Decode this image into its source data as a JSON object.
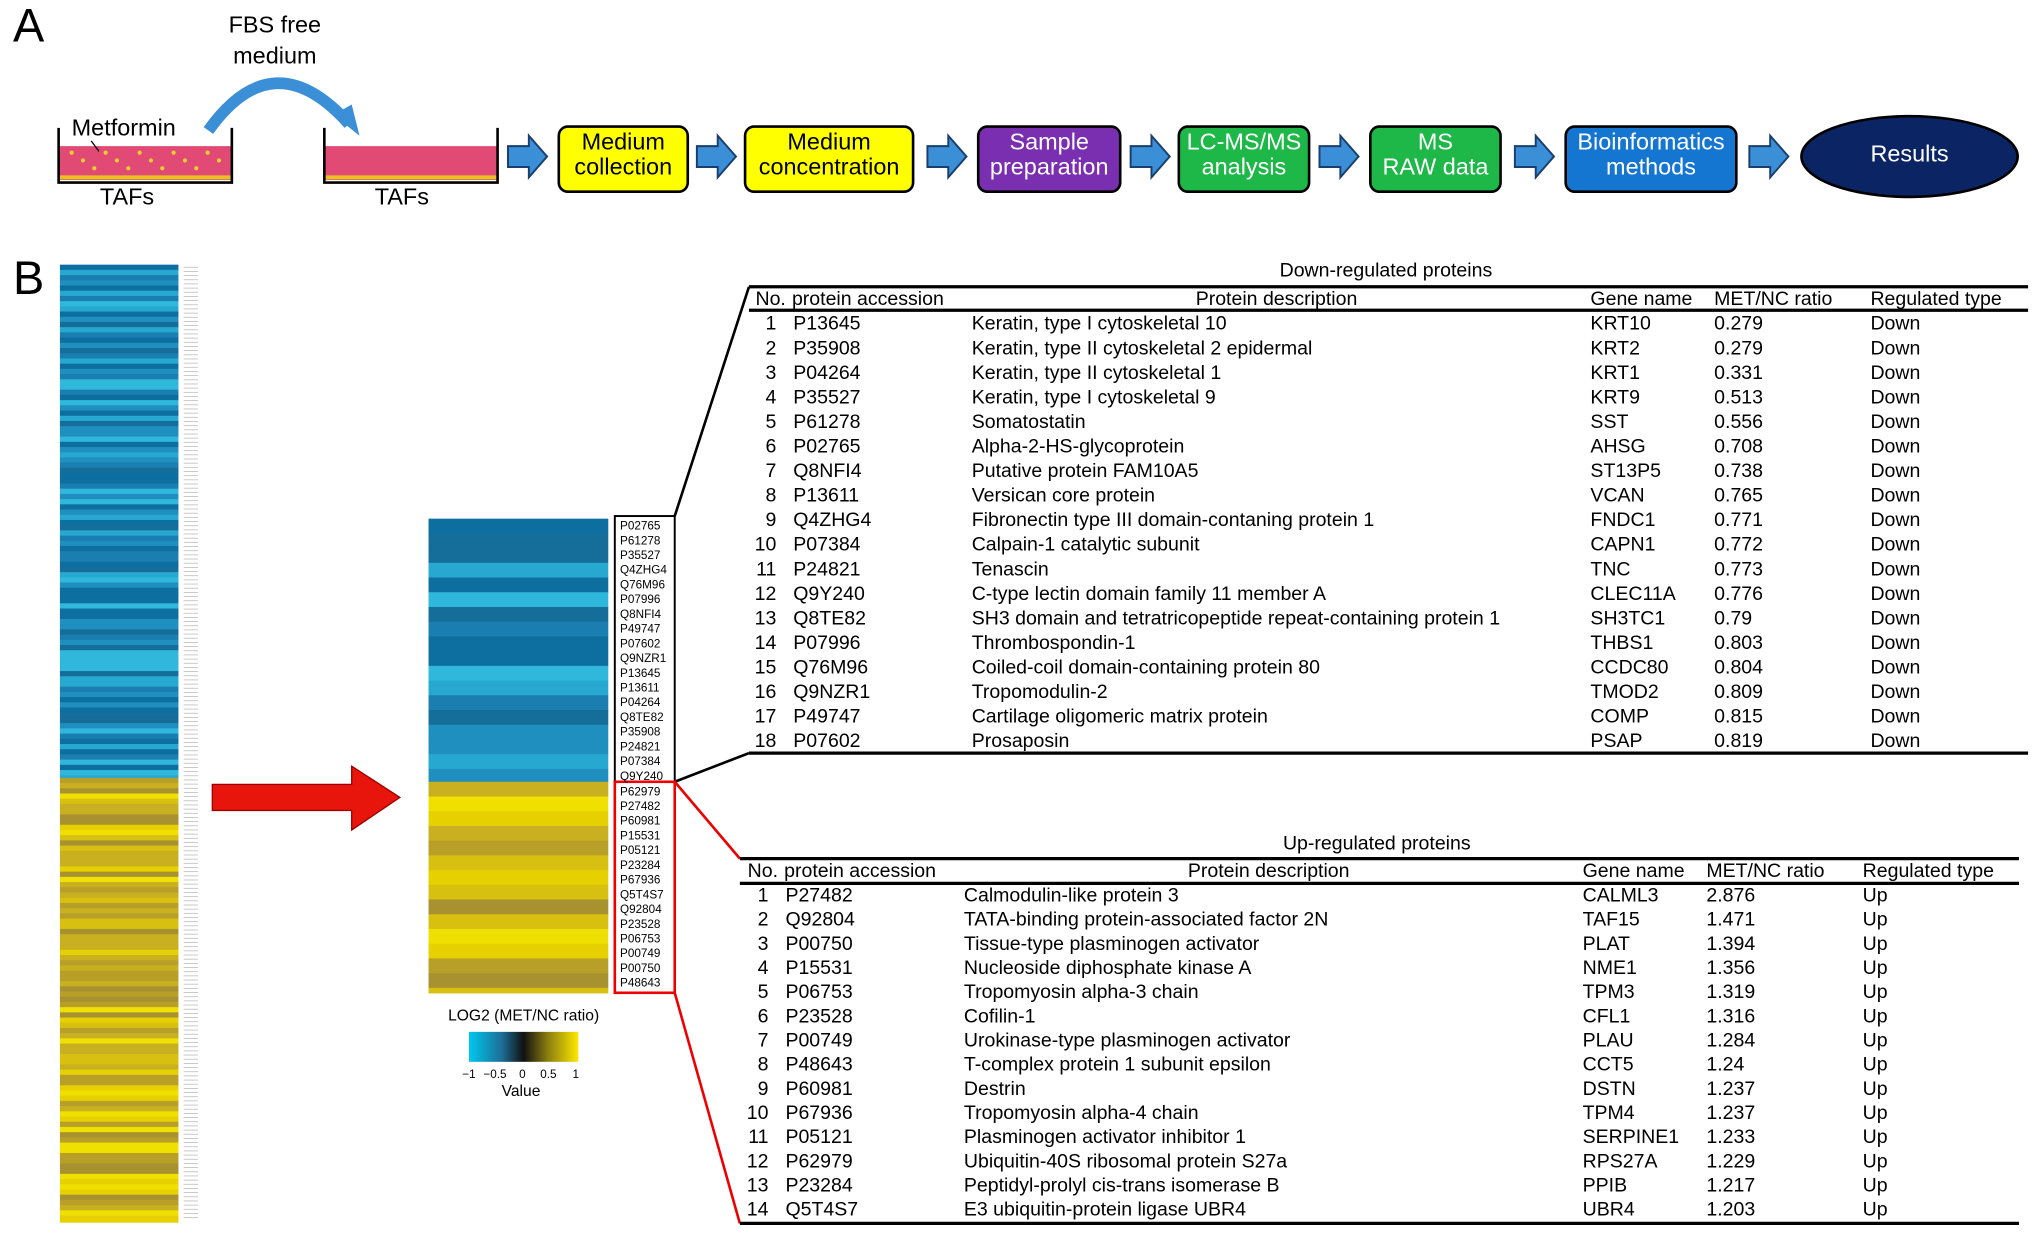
{
  "panel_a": {
    "label": "A",
    "fbs_label": [
      "FBS free",
      "medium"
    ],
    "metformin": "Metformin",
    "tafs": [
      "TAFs",
      "TAFs"
    ],
    "steps": [
      {
        "lines": [
          "Medium",
          "collection"
        ],
        "color": "#ffff00"
      },
      {
        "lines": [
          "Medium",
          "concentration"
        ],
        "color": "#ffff00"
      },
      {
        "lines": [
          "Sample",
          "preparation"
        ],
        "color": "#7a2fb0"
      },
      {
        "lines": [
          "LC-MS/MS",
          "analysis"
        ],
        "color": "#1db848"
      },
      {
        "lines": [
          "MS",
          "RAW data"
        ],
        "color": "#1db848"
      },
      {
        "lines": [
          "Bioinformatics",
          "methods"
        ],
        "color": "#1576d2"
      },
      {
        "lines": [
          "Results"
        ],
        "color": "#0b2463"
      }
    ]
  },
  "panel_b": {
    "label": "B",
    "down_ids": [
      "P02765",
      "P61278",
      "P35527",
      "Q4ZHG4",
      "Q76M96",
      "P07996",
      "Q8NFI4",
      "P49747",
      "P07602",
      "Q9NZR1",
      "P13645",
      "P13611",
      "P04264",
      "Q8TE82",
      "P35908",
      "P24821",
      "P07384",
      "Q9Y240"
    ],
    "up_ids": [
      "P62979",
      "P27482",
      "P60981",
      "P15531",
      "P05121",
      "P23284",
      "P67936",
      "Q5T4S7",
      "Q92804",
      "P23528",
      "P06753",
      "P00749",
      "P00750",
      "P48643"
    ],
    "colorbar": {
      "title": "LOG2 (MET/NC ratio)",
      "ticks": [
        "−1",
        "−0.5",
        "0",
        "0.5",
        "1"
      ],
      "label": "Value"
    },
    "tables": [
      {
        "title": "Down-regulated proteins",
        "columns": [
          "No.",
          "protein accession",
          "Protein description",
          "Gene name",
          "MET/NC ratio",
          "Regulated type"
        ],
        "rows": [
          [
            1,
            "P13645",
            "Keratin, type I cytoskeletal 10",
            "KRT10",
            0.279,
            "Down"
          ],
          [
            2,
            "P35908",
            "Keratin, type II cytoskeletal 2 epidermal",
            "KRT2",
            0.279,
            "Down"
          ],
          [
            3,
            "P04264",
            "Keratin, type II cytoskeletal 1",
            "KRT1",
            0.331,
            "Down"
          ],
          [
            4,
            "P35527",
            "Keratin, type I cytoskeletal 9",
            "KRT9",
            0.513,
            "Down"
          ],
          [
            5,
            "P61278",
            "Somatostatin",
            "SST",
            0.556,
            "Down"
          ],
          [
            6,
            "P02765",
            "Alpha-2-HS-glycoprotein",
            "AHSG",
            0.708,
            "Down"
          ],
          [
            7,
            "Q8NFI4",
            "Putative protein FAM10A5",
            "ST13P5",
            0.738,
            "Down"
          ],
          [
            8,
            "P13611",
            "Versican core protein",
            "VCAN",
            0.765,
            "Down"
          ],
          [
            9,
            "Q4ZHG4",
            "Fibronectin type III domain-contaning protein 1",
            "FNDC1",
            0.771,
            "Down"
          ],
          [
            10,
            "P07384",
            "Calpain-1 catalytic subunit",
            "CAPN1",
            0.772,
            "Down"
          ],
          [
            11,
            "P24821",
            "Tenascin",
            "TNC",
            0.773,
            "Down"
          ],
          [
            12,
            "Q9Y240",
            "C-type lectin domain family 11 member A",
            "CLEC11A",
            0.776,
            "Down"
          ],
          [
            13,
            "Q8TE82",
            "SH3 domain and tetratricopeptide repeat-containing protein 1",
            "SH3TC1",
            0.79,
            "Down"
          ],
          [
            14,
            "P07996",
            "Thrombospondin-1",
            "THBS1",
            0.803,
            "Down"
          ],
          [
            15,
            "Q76M96",
            "Coiled-coil domain-containing protein 80",
            "CCDC80",
            0.804,
            "Down"
          ],
          [
            16,
            "Q9NZR1",
            "Tropomodulin-2",
            "TMOD2",
            0.809,
            "Down"
          ],
          [
            17,
            "P49747",
            "Cartilage oligomeric matrix protein",
            "COMP",
            0.815,
            "Down"
          ],
          [
            18,
            "P07602",
            "Prosaposin",
            "PSAP",
            0.819,
            "Down"
          ]
        ]
      },
      {
        "title": "Up-regulated proteins",
        "columns": [
          "No.",
          "protein accession",
          "Protein description",
          "Gene name",
          "MET/NC ratio",
          "Regulated type"
        ],
        "rows": [
          [
            1,
            "P27482",
            "Calmodulin-like protein 3",
            "CALML3",
            2.876,
            "Up"
          ],
          [
            2,
            "Q92804",
            "TATA-binding protein-associated factor 2N",
            "TAF15",
            1.471,
            "Up"
          ],
          [
            3,
            "P00750",
            "Tissue-type plasminogen activator",
            "PLAT",
            1.394,
            "Up"
          ],
          [
            4,
            "P15531",
            "Nucleoside diphosphate kinase A",
            "NME1",
            1.356,
            "Up"
          ],
          [
            5,
            "P06753",
            "Tropomyosin alpha-3 chain",
            "TPM3",
            1.319,
            "Up"
          ],
          [
            6,
            "P23528",
            "Cofilin-1",
            "CFL1",
            1.316,
            "Up"
          ],
          [
            7,
            "P00749",
            "Urokinase-type plasminogen activator",
            "PLAU",
            1.284,
            "Up"
          ],
          [
            8,
            "P48643",
            "T-complex protein 1 subunit epsilon",
            "CCT5",
            1.24,
            "Up"
          ],
          [
            9,
            "P60981",
            "Destrin",
            "DSTN",
            1.237,
            "Up"
          ],
          [
            10,
            "P67936",
            "Tropomyosin alpha-4 chain",
            "TPM4",
            1.237,
            "Up"
          ],
          [
            11,
            "P05121",
            "Plasminogen activator inhibitor 1",
            "SERPINE1",
            1.233,
            "Up"
          ],
          [
            12,
            "P62979",
            "Ubiquitin-40S ribosomal protein S27a",
            "RPS27A",
            1.229,
            "Up"
          ],
          [
            13,
            "P23284",
            "Peptidyl-prolyl cis-trans isomerase B",
            "PPIB",
            1.217,
            "Up"
          ],
          [
            14,
            "Q5T4S7",
            "E3 ubiquitin-protein ligase UBR4",
            "UBR4",
            1.203,
            "Up"
          ]
        ]
      }
    ]
  }
}
